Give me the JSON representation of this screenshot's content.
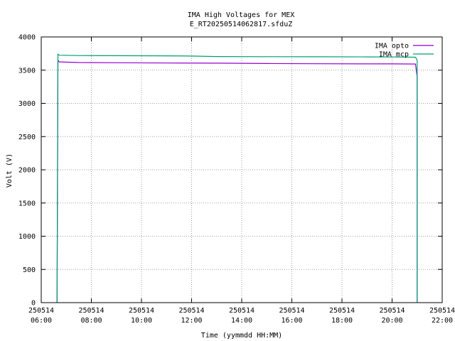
{
  "chart_data": {
    "type": "line",
    "title": "IMA High Voltages for MEX",
    "subtitle": "E_RT20250514062817.sfduZ",
    "xlabel": "Time (yymmdd HH:MM)",
    "ylabel": "Volt (V)",
    "xlim": [
      "250514 06:00",
      "250514 22:00"
    ],
    "ylim": [
      0,
      4000
    ],
    "grid": true,
    "legend_position": "top-right",
    "x_ticks": [
      {
        "line1": "250514",
        "line2": "06:00"
      },
      {
        "line1": "250514",
        "line2": "08:00"
      },
      {
        "line1": "250514",
        "line2": "10:00"
      },
      {
        "line1": "250514",
        "line2": "12:00"
      },
      {
        "line1": "250514",
        "line2": "14:00"
      },
      {
        "line1": "250514",
        "line2": "16:00"
      },
      {
        "line1": "250514",
        "line2": "18:00"
      },
      {
        "line1": "250514",
        "line2": "20:00"
      },
      {
        "line1": "250514",
        "line2": "22:00"
      }
    ],
    "y_ticks": [
      "0",
      "500",
      "1000",
      "1500",
      "2000",
      "2500",
      "3000",
      "3500",
      "4000"
    ],
    "series": [
      {
        "name": "IMA opto",
        "color": "#9400d3",
        "x": [
          "250514 06:38",
          "250514 06:38",
          "250514 06:40",
          "250514 06:43",
          "250514 07:30",
          "250514 09:00",
          "250514 11:00",
          "250514 13:00",
          "250514 15:00",
          "250514 17:00",
          "250514 19:00",
          "250514 20:00",
          "250514 20:56",
          "250514 21:00",
          "250514 21:00"
        ],
        "values": [
          0,
          200,
          3650,
          3625,
          3615,
          3612,
          3608,
          3605,
          3600,
          3597,
          3595,
          3595,
          3592,
          3400,
          0
        ]
      },
      {
        "name": "IMA mcp",
        "color": "#009e73",
        "x": [
          "250514 06:38",
          "250514 06:40",
          "250514 06:43",
          "250514 07:30",
          "250514 09:00",
          "250514 11:00",
          "250514 12:00",
          "250514 13:00",
          "250514 15:00",
          "250514 17:00",
          "250514 19:00",
          "250514 20:00",
          "250514 20:56",
          "250514 21:00",
          "250514 21:00"
        ],
        "values": [
          0,
          3740,
          3725,
          3720,
          3718,
          3715,
          3712,
          3705,
          3703,
          3702,
          3700,
          3698,
          3695,
          3650,
          0
        ]
      }
    ]
  }
}
